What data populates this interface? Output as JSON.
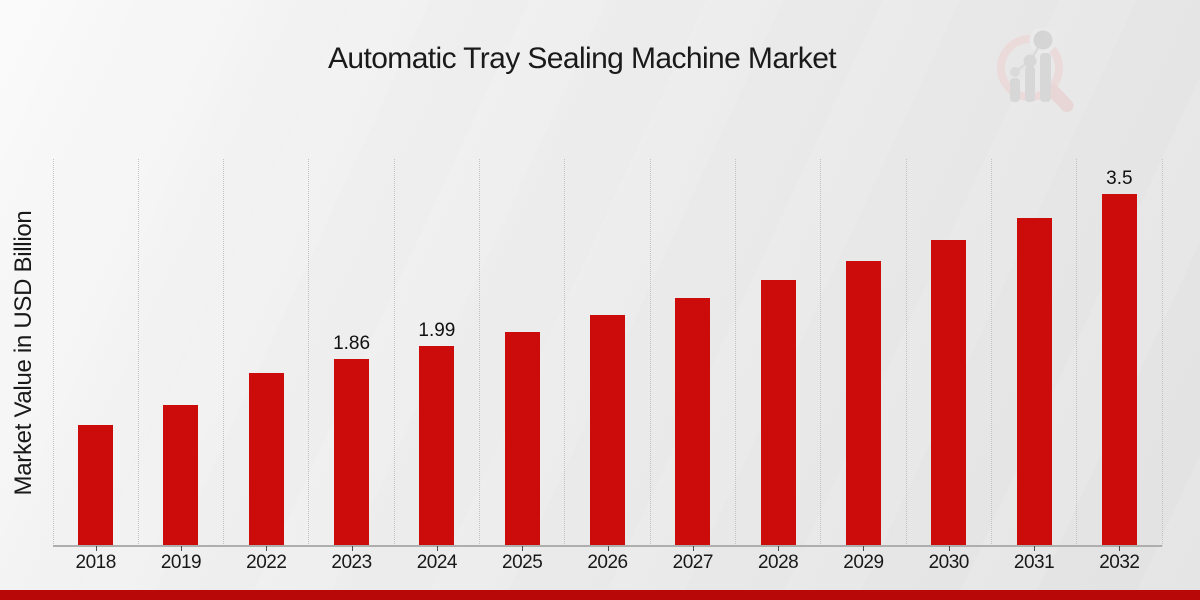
{
  "page": {
    "title": "Automatic Tray Sealing Machine Market"
  },
  "icons": {
    "watermark": "magnifier-bar-chart-logo-icon"
  },
  "colors": {
    "bar": "#cc0b0b",
    "footer_band": "#b90808",
    "gridline": "#c2c2c2",
    "axis": "#aeaeae",
    "text": "#1a1a1a",
    "watermark_pink": "#ecd9d9",
    "watermark_gray": "#d6d6d6"
  },
  "chart_data": {
    "type": "bar",
    "title": "Automatic Tray Sealing Machine Market",
    "xlabel": "",
    "ylabel": "Market Value in USD Billion",
    "categories": [
      "2018",
      "2019",
      "2022",
      "2023",
      "2024",
      "2025",
      "2026",
      "2027",
      "2028",
      "2029",
      "2030",
      "2031",
      "2032"
    ],
    "values": [
      1.2,
      1.4,
      1.72,
      1.86,
      1.99,
      2.13,
      2.29,
      2.46,
      2.64,
      2.83,
      3.04,
      3.26,
      3.5
    ],
    "data_labels": {
      "2023": "1.86",
      "2024": "1.99",
      "2032": "3.5"
    },
    "bar_color": "#cc0b0b",
    "ylim": [
      0,
      3.84
    ],
    "grid": "vertical-dotted",
    "legend_position": "none",
    "y_axis_ticks_visible": false
  }
}
